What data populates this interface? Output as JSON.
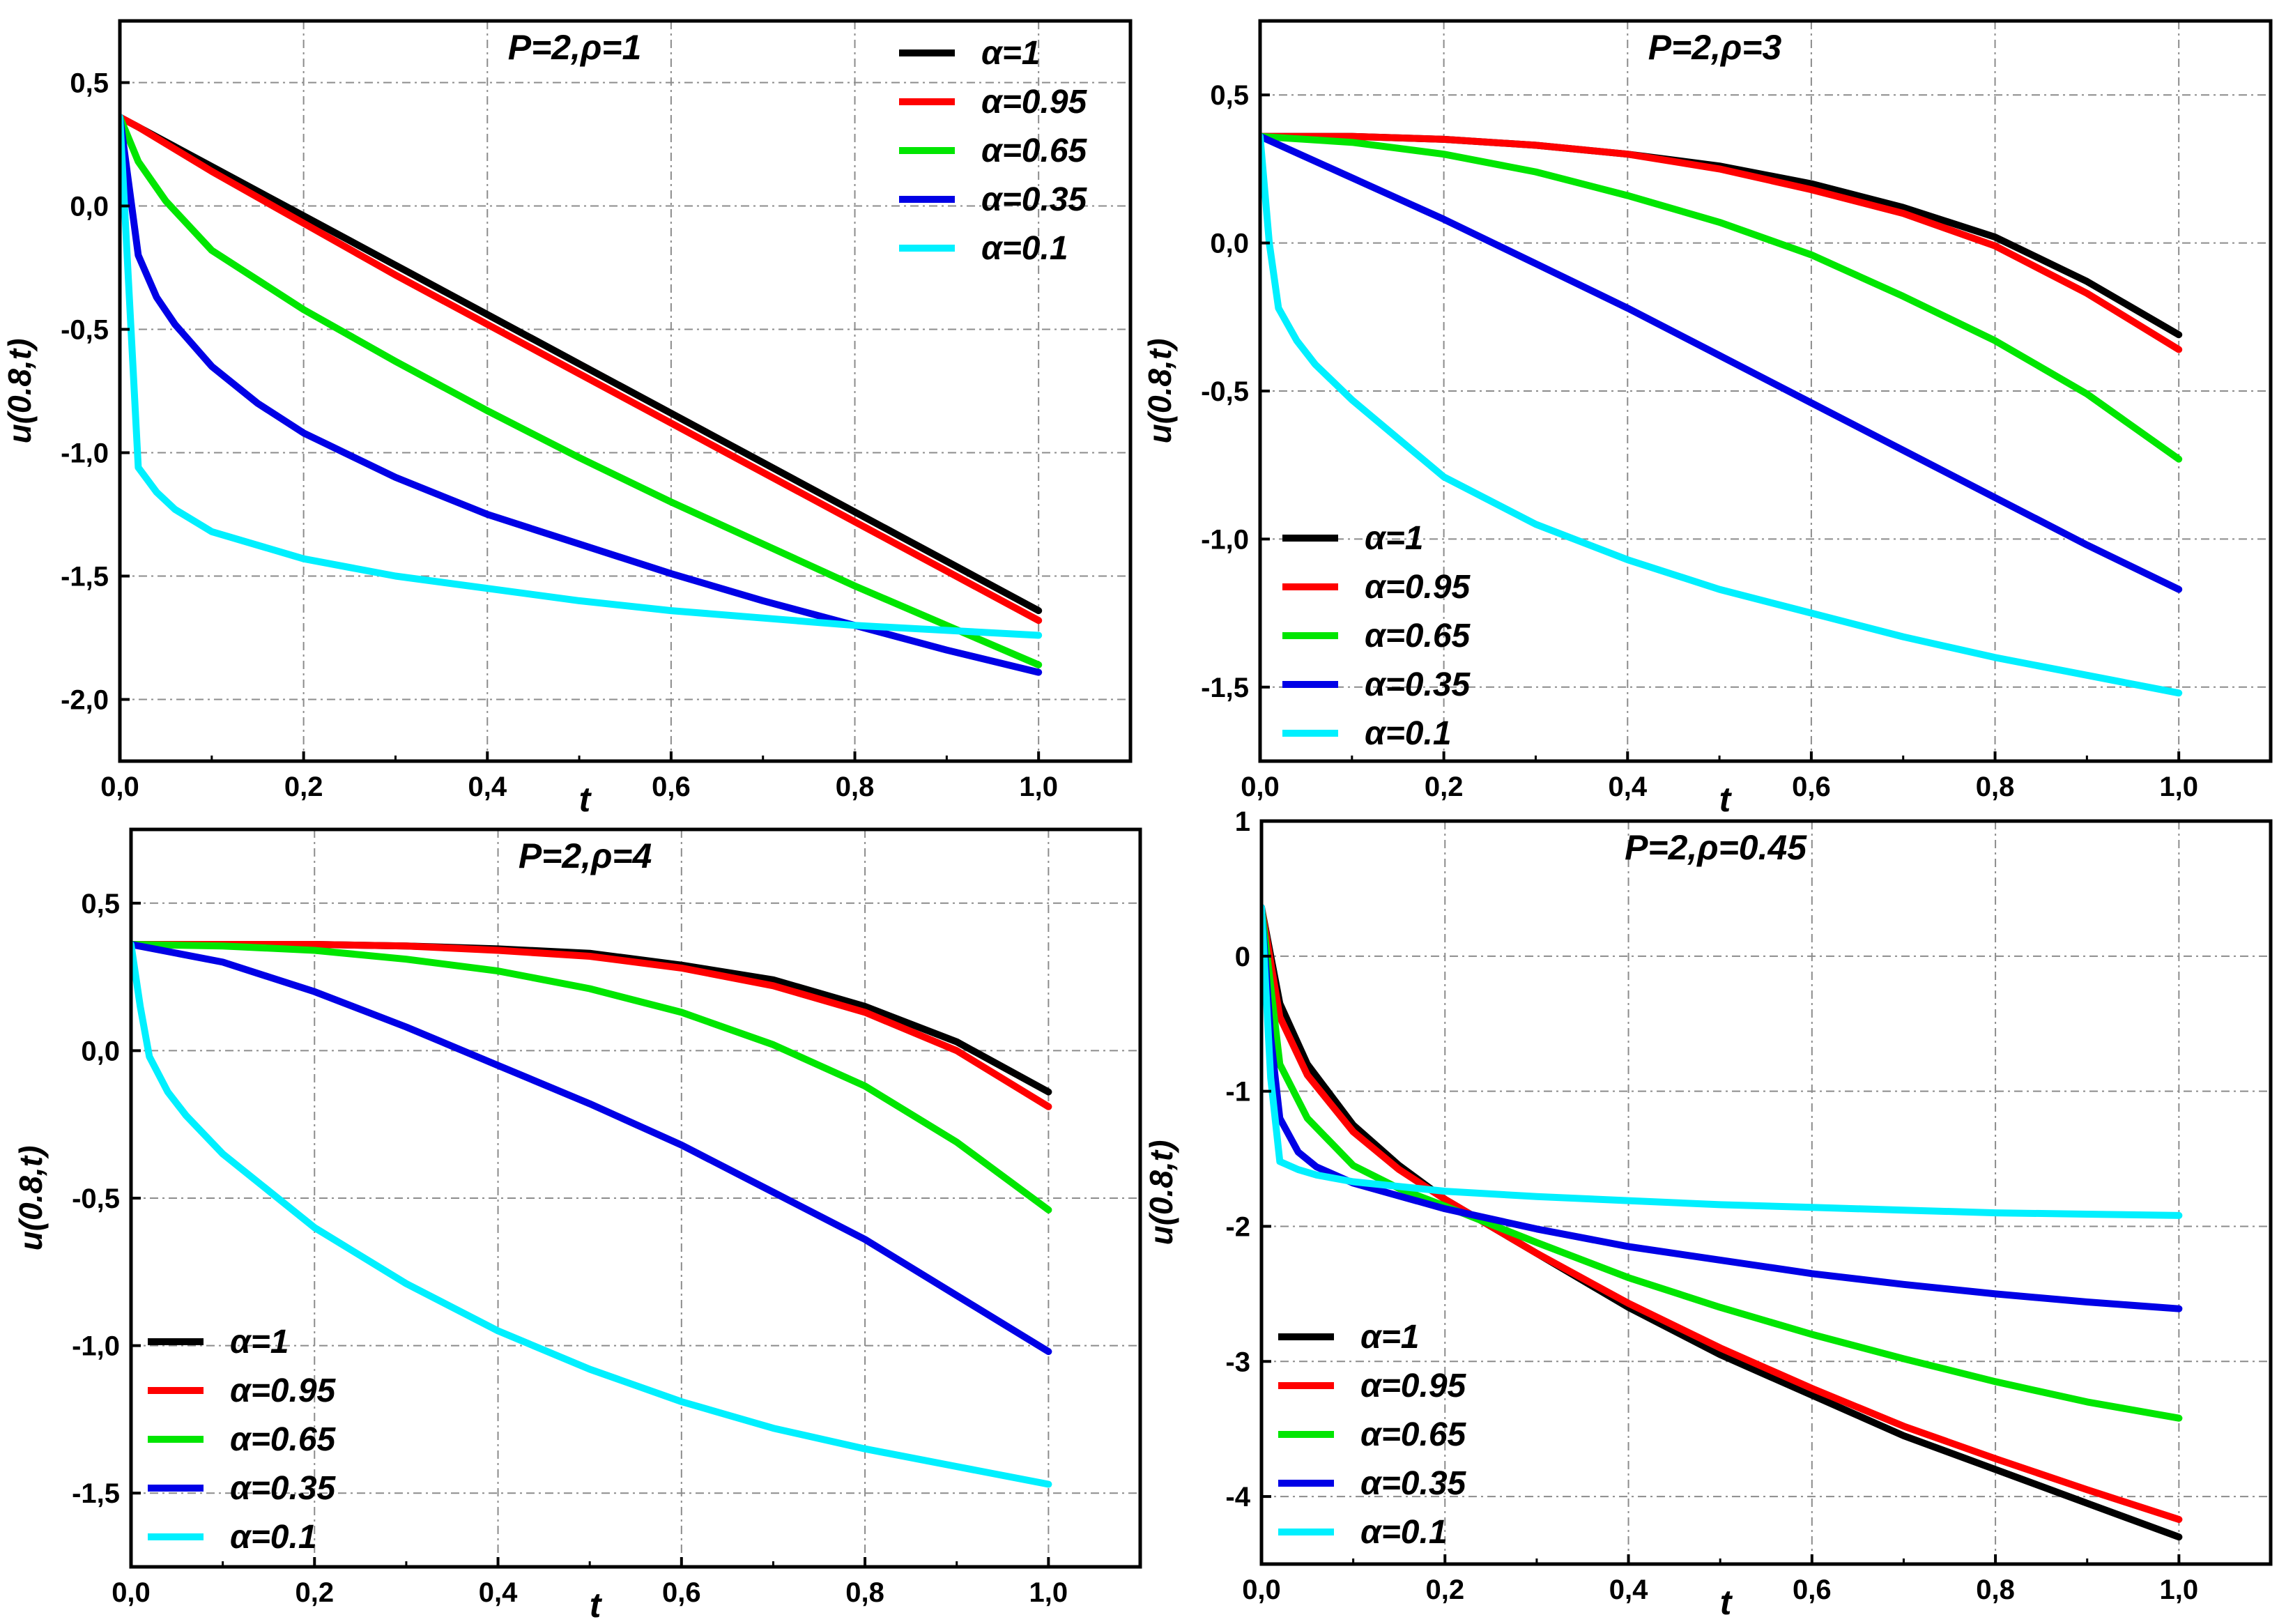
{
  "colors": {
    "alpha_1": "#000000",
    "alpha_095": "#ff0000",
    "alpha_065": "#00e600",
    "alpha_035": "#0000e6",
    "alpha_01": "#00f0ff",
    "grid": "#8c8c8c",
    "axis": "#000000"
  },
  "chart_data": [
    {
      "type": "line",
      "title": "P=2,ρ=1",
      "xlabel": "t",
      "ylabel": "u(0.8,t)",
      "xlim": [
        0,
        1.1
      ],
      "ylim": [
        -2.25,
        0.75
      ],
      "xticks": [
        0,
        0.2,
        0.4,
        0.6,
        0.8,
        1.0
      ],
      "xtick_labels": [
        "0,0",
        "0,2",
        "0,4",
        "0,6",
        "0,8",
        "1,0"
      ],
      "yticks": [
        0.5,
        0,
        -0.5,
        -1.0,
        -1.5,
        -2.0
      ],
      "ytick_labels": [
        "0,5",
        "0,0",
        "-0,5",
        "-1,0",
        "-1,5",
        "-2,0"
      ],
      "grid": true,
      "legend_position": "top-right",
      "series": [
        {
          "name": "α=1",
          "color_key": "alpha_1",
          "x": [
            0,
            0.1,
            0.2,
            0.3,
            0.4,
            0.5,
            0.6,
            0.7,
            0.8,
            0.9,
            1.0
          ],
          "values": [
            0.36,
            0.16,
            -0.04,
            -0.24,
            -0.44,
            -0.64,
            -0.84,
            -1.04,
            -1.24,
            -1.44,
            -1.64
          ]
        },
        {
          "name": "α=0.95",
          "color_key": "alpha_095",
          "x": [
            0,
            0.02,
            0.1,
            0.2,
            0.3,
            0.4,
            0.5,
            0.6,
            0.7,
            0.8,
            0.9,
            1.0
          ],
          "values": [
            0.36,
            0.32,
            0.14,
            -0.07,
            -0.28,
            -0.48,
            -0.68,
            -0.88,
            -1.08,
            -1.28,
            -1.48,
            -1.68
          ]
        },
        {
          "name": "α=0.65",
          "color_key": "alpha_065",
          "x": [
            0,
            0.02,
            0.05,
            0.1,
            0.2,
            0.3,
            0.4,
            0.5,
            0.6,
            0.7,
            0.8,
            0.9,
            1.0
          ],
          "values": [
            0.36,
            0.18,
            0.02,
            -0.18,
            -0.42,
            -0.63,
            -0.83,
            -1.02,
            -1.2,
            -1.37,
            -1.54,
            -1.7,
            -1.86
          ]
        },
        {
          "name": "α=0.35",
          "color_key": "alpha_035",
          "x": [
            0,
            0.02,
            0.04,
            0.06,
            0.1,
            0.15,
            0.2,
            0.3,
            0.4,
            0.5,
            0.6,
            0.7,
            0.8,
            0.9,
            1.0
          ],
          "values": [
            0.36,
            -0.2,
            -0.37,
            -0.48,
            -0.65,
            -0.8,
            -0.92,
            -1.1,
            -1.25,
            -1.37,
            -1.49,
            -1.6,
            -1.7,
            -1.8,
            -1.89
          ]
        },
        {
          "name": "α=0.1",
          "color_key": "alpha_01",
          "x": [
            0,
            0.02,
            0.04,
            0.06,
            0.1,
            0.2,
            0.3,
            0.4,
            0.5,
            0.6,
            0.7,
            0.8,
            0.9,
            1.0
          ],
          "values": [
            0.36,
            -1.06,
            -1.16,
            -1.23,
            -1.32,
            -1.43,
            -1.5,
            -1.55,
            -1.6,
            -1.64,
            -1.67,
            -1.7,
            -1.72,
            -1.74
          ]
        }
      ]
    },
    {
      "type": "line",
      "title": "P=2,ρ=3",
      "xlabel": "t",
      "ylabel": "u(0.8,t)",
      "xlim": [
        0,
        1.1
      ],
      "ylim": [
        -1.75,
        0.75
      ],
      "xticks": [
        0,
        0.2,
        0.4,
        0.6,
        0.8,
        1.0
      ],
      "xtick_labels": [
        "0,0",
        "0,2",
        "0,4",
        "0,6",
        "0,8",
        "1,0"
      ],
      "yticks": [
        0.5,
        0,
        -0.5,
        -1.0,
        -1.5
      ],
      "ytick_labels": [
        "0,5",
        "0,0",
        "-0,5",
        "-1,0",
        "-1,5"
      ],
      "grid": true,
      "legend_position": "bottom-left",
      "series": [
        {
          "name": "α=1",
          "color_key": "alpha_1",
          "x": [
            0,
            0.1,
            0.2,
            0.3,
            0.4,
            0.5,
            0.6,
            0.7,
            0.8,
            0.9,
            1.0
          ],
          "values": [
            0.36,
            0.36,
            0.35,
            0.33,
            0.3,
            0.26,
            0.2,
            0.12,
            0.02,
            -0.13,
            -0.31
          ]
        },
        {
          "name": "α=0.95",
          "color_key": "alpha_095",
          "x": [
            0,
            0.1,
            0.2,
            0.3,
            0.4,
            0.5,
            0.6,
            0.7,
            0.8,
            0.9,
            1.0
          ],
          "values": [
            0.36,
            0.36,
            0.35,
            0.33,
            0.3,
            0.25,
            0.18,
            0.1,
            -0.01,
            -0.17,
            -0.36
          ]
        },
        {
          "name": "α=0.65",
          "color_key": "alpha_065",
          "x": [
            0,
            0.1,
            0.2,
            0.3,
            0.4,
            0.5,
            0.6,
            0.7,
            0.8,
            0.9,
            1.0
          ],
          "values": [
            0.36,
            0.34,
            0.3,
            0.24,
            0.16,
            0.07,
            -0.04,
            -0.18,
            -0.33,
            -0.51,
            -0.73
          ]
        },
        {
          "name": "α=0.35",
          "color_key": "alpha_035",
          "x": [
            0,
            0.1,
            0.2,
            0.3,
            0.4,
            0.5,
            0.6,
            0.7,
            0.8,
            0.9,
            1.0
          ],
          "values": [
            0.36,
            0.22,
            0.08,
            -0.07,
            -0.22,
            -0.38,
            -0.54,
            -0.7,
            -0.86,
            -1.02,
            -1.17
          ]
        },
        {
          "name": "α=0.1",
          "color_key": "alpha_01",
          "x": [
            0,
            0.01,
            0.02,
            0.04,
            0.06,
            0.1,
            0.2,
            0.3,
            0.4,
            0.5,
            0.6,
            0.7,
            0.8,
            0.9,
            1.0
          ],
          "values": [
            0.36,
            0.0,
            -0.22,
            -0.33,
            -0.41,
            -0.53,
            -0.79,
            -0.95,
            -1.07,
            -1.17,
            -1.25,
            -1.33,
            -1.4,
            -1.46,
            -1.52
          ]
        }
      ]
    },
    {
      "type": "line",
      "title": "P=2,ρ=4",
      "xlabel": "t",
      "ylabel": "u(0.8,t)",
      "xlim": [
        0,
        1.1
      ],
      "ylim": [
        -1.75,
        0.75
      ],
      "xticks": [
        0,
        0.2,
        0.4,
        0.6,
        0.8,
        1.0
      ],
      "xtick_labels": [
        "0,0",
        "0,2",
        "0,4",
        "0,6",
        "0,8",
        "1,0"
      ],
      "yticks": [
        0.5,
        0,
        -0.5,
        -1.0,
        -1.5
      ],
      "ytick_labels": [
        "0,5",
        "0,0",
        "-0,5",
        "-1,0",
        "-1,5"
      ],
      "grid": true,
      "legend_position": "bottom-left",
      "series": [
        {
          "name": "α=1",
          "color_key": "alpha_1",
          "x": [
            0,
            0.1,
            0.2,
            0.3,
            0.4,
            0.5,
            0.6,
            0.7,
            0.8,
            0.9,
            1.0
          ],
          "values": [
            0.36,
            0.36,
            0.36,
            0.355,
            0.345,
            0.33,
            0.29,
            0.24,
            0.15,
            0.03,
            -0.14
          ]
        },
        {
          "name": "α=0.95",
          "color_key": "alpha_095",
          "x": [
            0,
            0.1,
            0.2,
            0.3,
            0.4,
            0.5,
            0.6,
            0.7,
            0.8,
            0.9,
            1.0
          ],
          "values": [
            0.36,
            0.36,
            0.36,
            0.355,
            0.34,
            0.32,
            0.28,
            0.22,
            0.13,
            0.0,
            -0.19
          ]
        },
        {
          "name": "α=0.65",
          "color_key": "alpha_065",
          "x": [
            0,
            0.1,
            0.2,
            0.3,
            0.4,
            0.5,
            0.6,
            0.7,
            0.8,
            0.9,
            1.0
          ],
          "values": [
            0.36,
            0.355,
            0.34,
            0.31,
            0.27,
            0.21,
            0.13,
            0.02,
            -0.12,
            -0.31,
            -0.54
          ]
        },
        {
          "name": "α=0.35",
          "color_key": "alpha_035",
          "x": [
            0,
            0.1,
            0.2,
            0.3,
            0.4,
            0.5,
            0.6,
            0.7,
            0.8,
            0.9,
            1.0
          ],
          "values": [
            0.36,
            0.3,
            0.2,
            0.08,
            -0.05,
            -0.18,
            -0.32,
            -0.48,
            -0.64,
            -0.83,
            -1.02
          ]
        },
        {
          "name": "α=0.1",
          "color_key": "alpha_01",
          "x": [
            0,
            0.01,
            0.02,
            0.04,
            0.06,
            0.1,
            0.2,
            0.3,
            0.4,
            0.5,
            0.6,
            0.7,
            0.8,
            0.9,
            1.0
          ],
          "values": [
            0.36,
            0.15,
            -0.02,
            -0.14,
            -0.22,
            -0.35,
            -0.6,
            -0.79,
            -0.95,
            -1.08,
            -1.19,
            -1.28,
            -1.35,
            -1.41,
            -1.47
          ]
        }
      ]
    },
    {
      "type": "line",
      "title": "P=2,ρ=0.45",
      "xlabel": "t",
      "ylabel": "u(0.8,t)",
      "xlim": [
        0,
        1.1
      ],
      "ylim": [
        -4.5,
        1.0
      ],
      "xticks": [
        0,
        0.2,
        0.4,
        0.6,
        0.8,
        1.0
      ],
      "xtick_labels": [
        "0,0",
        "0,2",
        "0,4",
        "0,6",
        "0,8",
        "1,0"
      ],
      "yticks": [
        1,
        0,
        -1,
        -2,
        -3,
        -4
      ],
      "ytick_labels": [
        "1",
        "0",
        "-1",
        "-2",
        "-3",
        "-4"
      ],
      "grid": true,
      "legend_position": "bottom-left",
      "series": [
        {
          "name": "α=1",
          "color_key": "alpha_1",
          "x": [
            0,
            0.02,
            0.05,
            0.1,
            0.15,
            0.2,
            0.3,
            0.4,
            0.5,
            0.6,
            0.7,
            0.8,
            0.9,
            1.0
          ],
          "values": [
            0.36,
            -0.35,
            -0.8,
            -1.25,
            -1.55,
            -1.8,
            -2.2,
            -2.6,
            -2.95,
            -3.25,
            -3.55,
            -3.8,
            -4.05,
            -4.3
          ]
        },
        {
          "name": "α=0.95",
          "color_key": "alpha_095",
          "x": [
            0,
            0.02,
            0.05,
            0.1,
            0.15,
            0.2,
            0.3,
            0.4,
            0.5,
            0.6,
            0.7,
            0.8,
            0.9,
            1.0
          ],
          "values": [
            0.36,
            -0.45,
            -0.88,
            -1.3,
            -1.58,
            -1.8,
            -2.2,
            -2.57,
            -2.9,
            -3.2,
            -3.48,
            -3.72,
            -3.95,
            -4.17
          ]
        },
        {
          "name": "α=0.65",
          "color_key": "alpha_065",
          "x": [
            0,
            0.02,
            0.05,
            0.1,
            0.15,
            0.2,
            0.3,
            0.4,
            0.5,
            0.6,
            0.7,
            0.8,
            0.9,
            1.0
          ],
          "values": [
            0.36,
            -0.8,
            -1.2,
            -1.55,
            -1.72,
            -1.85,
            -2.12,
            -2.38,
            -2.6,
            -2.8,
            -2.98,
            -3.15,
            -3.3,
            -3.42
          ]
        },
        {
          "name": "α=0.35",
          "color_key": "alpha_035",
          "x": [
            0,
            0.01,
            0.02,
            0.04,
            0.06,
            0.1,
            0.2,
            0.3,
            0.4,
            0.5,
            0.6,
            0.7,
            0.8,
            0.9,
            1.0
          ],
          "values": [
            0.36,
            -0.6,
            -1.2,
            -1.45,
            -1.56,
            -1.68,
            -1.87,
            -2.02,
            -2.15,
            -2.25,
            -2.35,
            -2.43,
            -2.5,
            -2.56,
            -2.61
          ]
        },
        {
          "name": "α=0.1",
          "color_key": "alpha_01",
          "x": [
            0,
            0.01,
            0.02,
            0.04,
            0.06,
            0.1,
            0.2,
            0.3,
            0.4,
            0.5,
            0.6,
            0.7,
            0.8,
            0.9,
            1.0
          ],
          "values": [
            0.36,
            -0.9,
            -1.52,
            -1.58,
            -1.62,
            -1.67,
            -1.74,
            -1.78,
            -1.81,
            -1.84,
            -1.86,
            -1.88,
            -1.9,
            -1.91,
            -1.92
          ]
        }
      ]
    }
  ]
}
